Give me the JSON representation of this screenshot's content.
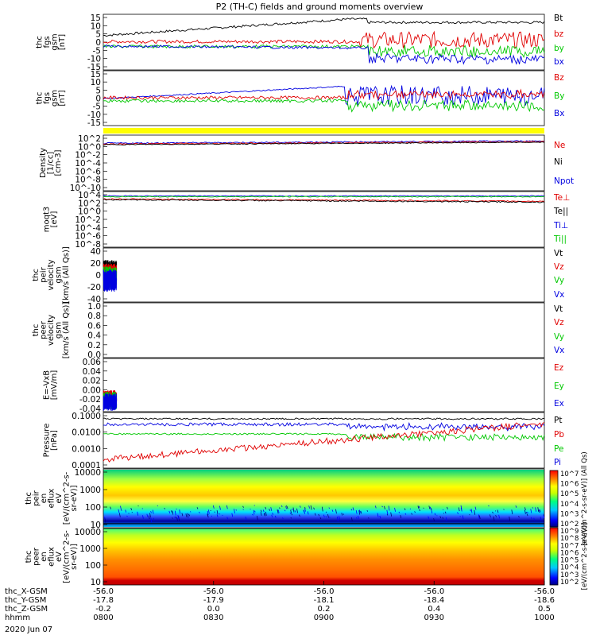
{
  "title": "P2 (TH-C) fields and ground moments overview",
  "date_label": "2020 Jun 07",
  "colors": {
    "black": "#000000",
    "red": "#e00000",
    "green": "#00c800",
    "blue": "#0000e0",
    "yellow": "#ffff00"
  },
  "chart_data": [
    {
      "type": "line",
      "ylabel": [
        "thc",
        "fgs",
        "gsm",
        "[nT]"
      ],
      "ylim": [
        -15,
        15
      ],
      "tick_labels": [
        "15",
        "10",
        "5",
        "0",
        "-5",
        "-10",
        "-15"
      ],
      "legend": [
        {
          "name": "Bt",
          "color": "#000000"
        },
        {
          "name": "bz",
          "color": "#e00000"
        },
        {
          "name": "by",
          "color": "#00c800"
        },
        {
          "name": "bx",
          "color": "#0000e0"
        }
      ]
    },
    {
      "type": "line",
      "ylabel": [
        "thc",
        "fgs",
        "gsm",
        "[nT]"
      ],
      "ylim": [
        -15,
        15
      ],
      "tick_labels": [
        "15",
        "10",
        "5",
        "0",
        "-5",
        "-10",
        "-15"
      ],
      "legend": [
        {
          "name": "Bz",
          "color": "#e00000"
        },
        {
          "name": "By",
          "color": "#00c800"
        },
        {
          "name": "Bx",
          "color": "#0000e0"
        }
      ]
    },
    {
      "type": "line",
      "ylabel": [
        "Density",
        "[1/cc]",
        "[cm-3]"
      ],
      "scale": "log",
      "tick_labels": [
        "10^2",
        "10^0",
        "10^-2",
        "10^-4",
        "10^-6",
        "10^-8",
        "10^-10"
      ],
      "legend": [
        {
          "name": "Ne",
          "color": "#e00000"
        },
        {
          "name": "Ni",
          "color": "#000000"
        },
        {
          "name": "Npot",
          "color": "#0000e0"
        }
      ]
    },
    {
      "type": "line",
      "ylabel": [
        "moqt3",
        "[eV]"
      ],
      "scale": "log",
      "tick_labels": [
        "10^4",
        "10^2",
        "10^0",
        "10^-2",
        "10^-4",
        "10^-6",
        "10^-8"
      ],
      "legend": [
        {
          "name": "Te⊥",
          "color": "#e00000"
        },
        {
          "name": "Te||",
          "color": "#000000"
        },
        {
          "name": "Ti⊥",
          "color": "#0000e0"
        },
        {
          "name": "Ti||",
          "color": "#00c800"
        }
      ]
    },
    {
      "type": "line",
      "ylabel": [
        "thc",
        "peir",
        "velocity",
        "gsm",
        "[km/s (All Qs)]"
      ],
      "ylim": [
        -40,
        40
      ],
      "tick_labels": [
        "40",
        "20",
        "0",
        "-20",
        "-40"
      ],
      "legend": [
        {
          "name": "Vt",
          "color": "#000000"
        },
        {
          "name": "Vz",
          "color": "#e00000"
        },
        {
          "name": "Vy",
          "color": "#00c800"
        },
        {
          "name": "Vx",
          "color": "#0000e0"
        }
      ]
    },
    {
      "type": "line",
      "ylabel": [
        "thc",
        "peer",
        "velocity",
        "gsm",
        "[km/s (All Qs)]"
      ],
      "ylim": [
        0,
        1
      ],
      "tick_labels": [
        "1.0",
        "0.8",
        "0.6",
        "0.4",
        "0.2",
        "0.0"
      ],
      "legend": [
        {
          "name": "Vt",
          "color": "#000000"
        },
        {
          "name": "Vz",
          "color": "#e00000"
        },
        {
          "name": "Vy",
          "color": "#00c800"
        },
        {
          "name": "Vx",
          "color": "#0000e0"
        }
      ]
    },
    {
      "type": "line",
      "ylabel": [
        "E=-VxB",
        "[mV/m]"
      ],
      "ylim": [
        -0.04,
        0.08
      ],
      "tick_labels": [
        "0.06",
        "0.04",
        "0.02",
        "0.00",
        "-0.02",
        "-0.04"
      ],
      "legend": [
        {
          "name": "Ez",
          "color": "#e00000"
        },
        {
          "name": "Ey",
          "color": "#00c800"
        },
        {
          "name": "Ex",
          "color": "#0000e0"
        }
      ]
    },
    {
      "type": "line",
      "ylabel": [
        "Pressure",
        "[nPa]"
      ],
      "scale": "log",
      "tick_labels": [
        "0.1000",
        "0.0100",
        "0.0010",
        "0.0001"
      ],
      "legend": [
        {
          "name": "Pt",
          "color": "#000000"
        },
        {
          "name": "Pb",
          "color": "#e00000"
        },
        {
          "name": "Pe",
          "color": "#00c800"
        },
        {
          "name": "Pi",
          "color": "#0000e0"
        }
      ]
    },
    {
      "type": "heatmap",
      "ylabel": [
        "thc",
        "peir",
        "en",
        "eflux",
        "eV",
        "[eV/(cm^2-s-",
        "sr-eV)]"
      ],
      "scale": "log",
      "tick_labels": [
        "10000",
        "1000",
        "100",
        "10"
      ]
    },
    {
      "type": "heatmap",
      "ylabel": [
        "thc",
        "peer",
        "en",
        "eflux",
        "eV",
        "[eV/(cm^2-s-",
        "sr-eV)]"
      ],
      "scale": "log",
      "tick_labels": [
        "10000",
        "1000",
        "100",
        "10"
      ]
    }
  ],
  "colorbar_upper": {
    "tick_labels": [
      "10^7",
      "10^6",
      "10^5",
      "10^4",
      "10^3",
      "10^2"
    ],
    "title": "[eV/(cm^2-s-sr-eV)] (All Qs)"
  },
  "colorbar_lower": {
    "tick_labels": [
      "10^9",
      "10^8",
      "10^7",
      "10^6",
      "10^5",
      "10^4",
      "10^3",
      "10^2"
    ],
    "title": "[eV/(cm^2-s-sr-eV)]"
  },
  "x_axis": {
    "rows": [
      {
        "label": "thc_X-GSM",
        "values": [
          "-56.0",
          "-56.0",
          "-56.0",
          "-56.0",
          "-56.0"
        ]
      },
      {
        "label": "thc_Y-GSM",
        "values": [
          "-17.8",
          "-17.9",
          "-18.1",
          "-18.4",
          "-18.6"
        ]
      },
      {
        "label": "thc_Z-GSM",
        "values": [
          "-0.2",
          "0.0",
          "0.2",
          "0.4",
          "0.5"
        ]
      },
      {
        "label": "hhmm",
        "values": [
          "0800",
          "0830",
          "0900",
          "0930",
          "1000"
        ]
      }
    ]
  }
}
